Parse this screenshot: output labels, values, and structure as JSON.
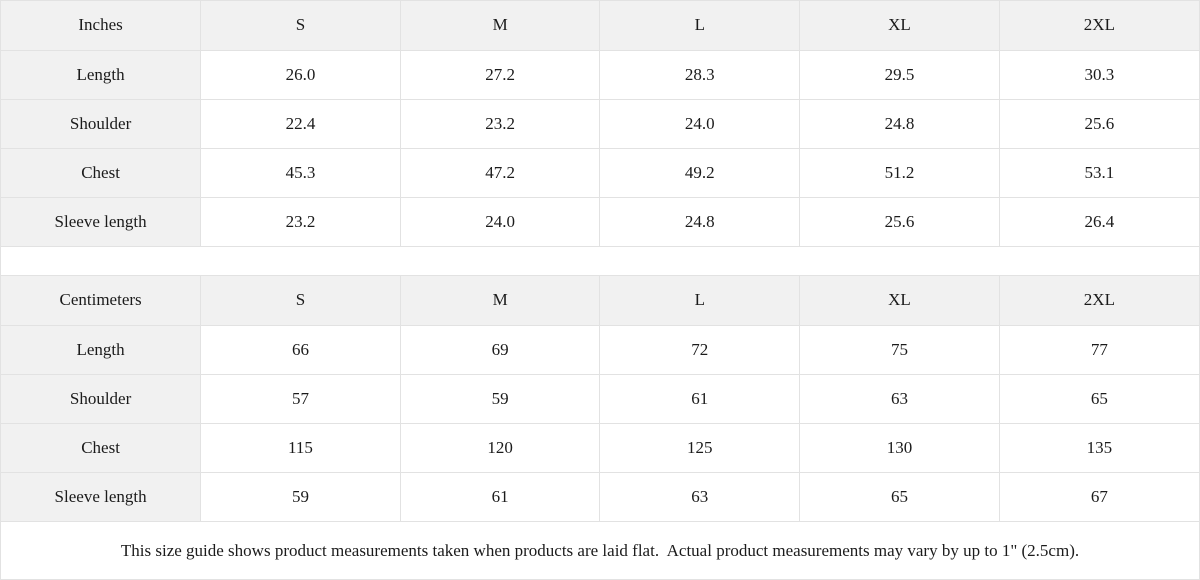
{
  "colors": {
    "header_and_label_background": "#f1f1f1",
    "cell_background": "#ffffff",
    "border": "#e2e2e2",
    "text": "#1b1b1b"
  },
  "tables": [
    {
      "unit_label": "Inches",
      "sizes": [
        "S",
        "M",
        "L",
        "XL",
        "2XL"
      ],
      "rows": [
        {
          "label": "Length",
          "values": [
            "26.0",
            "27.2",
            "28.3",
            "29.5",
            "30.3"
          ]
        },
        {
          "label": "Shoulder",
          "values": [
            "22.4",
            "23.2",
            "24.0",
            "24.8",
            "25.6"
          ]
        },
        {
          "label": "Chest",
          "values": [
            "45.3",
            "47.2",
            "49.2",
            "51.2",
            "53.1"
          ]
        },
        {
          "label": "Sleeve length",
          "values": [
            "23.2",
            "24.0",
            "24.8",
            "25.6",
            "26.4"
          ]
        }
      ]
    },
    {
      "unit_label": "Centimeters",
      "sizes": [
        "S",
        "M",
        "L",
        "XL",
        "2XL"
      ],
      "rows": [
        {
          "label": "Length",
          "values": [
            "66",
            "69",
            "72",
            "75",
            "77"
          ]
        },
        {
          "label": "Shoulder",
          "values": [
            "57",
            "59",
            "61",
            "63",
            "65"
          ]
        },
        {
          "label": "Chest",
          "values": [
            "115",
            "120",
            "125",
            "130",
            "135"
          ]
        },
        {
          "label": "Sleeve length",
          "values": [
            "59",
            "61",
            "63",
            "65",
            "67"
          ]
        }
      ]
    }
  ],
  "footer_note": "This size guide shows product measurements taken when products are laid flat.  Actual product measurements may vary by up to 1\" (2.5cm)."
}
